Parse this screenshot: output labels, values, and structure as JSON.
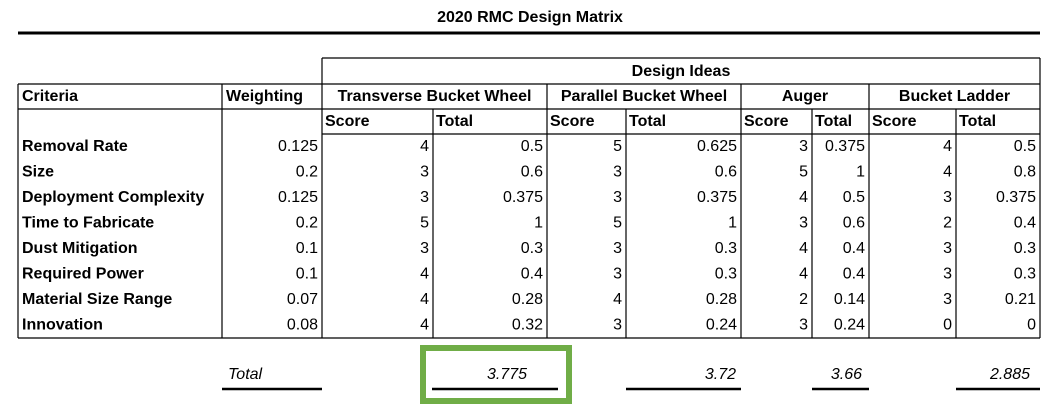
{
  "title": "2020 RMC Design Matrix",
  "table": {
    "group_header": "Design Ideas",
    "columns": [
      "Criteria",
      "Weighting"
    ],
    "designs": [
      {
        "name": "Transverse Bucket Wheel",
        "subcolumns": [
          "Score",
          "Total"
        ]
      },
      {
        "name": "Parallel Bucket Wheel",
        "subcolumns": [
          "Score",
          "Total"
        ]
      },
      {
        "name": "Auger",
        "subcolumns": [
          "Score",
          "Total"
        ]
      },
      {
        "name": "Bucket Ladder",
        "subcolumns": [
          "Score",
          "Total"
        ]
      }
    ],
    "rows": [
      [
        "Removal Rate",
        "0.125",
        "4",
        "0.5",
        "5",
        "0.625",
        "3",
        "0.375",
        "4",
        "0.5"
      ],
      [
        "Size",
        "0.2",
        "3",
        "0.6",
        "3",
        "0.6",
        "5",
        "1",
        "4",
        "0.8"
      ],
      [
        "Deployment Complexity",
        "0.125",
        "3",
        "0.375",
        "3",
        "0.375",
        "4",
        "0.5",
        "3",
        "0.375"
      ],
      [
        "Time to Fabricate",
        "0.2",
        "5",
        "1",
        "5",
        "1",
        "3",
        "0.6",
        "2",
        "0.4"
      ],
      [
        "Dust Mitigation",
        "0.1",
        "3",
        "0.3",
        "3",
        "0.3",
        "4",
        "0.4",
        "3",
        "0.3"
      ],
      [
        "Required Power",
        "0.1",
        "4",
        "0.4",
        "3",
        "0.3",
        "4",
        "0.4",
        "3",
        "0.3"
      ],
      [
        "Material Size Range",
        "0.07",
        "4",
        "0.28",
        "4",
        "0.28",
        "2",
        "0.14",
        "3",
        "0.21"
      ],
      [
        "Innovation",
        "0.08",
        "4",
        "0.32",
        "3",
        "0.24",
        "3",
        "0.24",
        "0",
        "0"
      ]
    ],
    "total_label": "Total",
    "totals": [
      "3.775",
      "3.72",
      "3.66",
      "2.885"
    ]
  }
}
